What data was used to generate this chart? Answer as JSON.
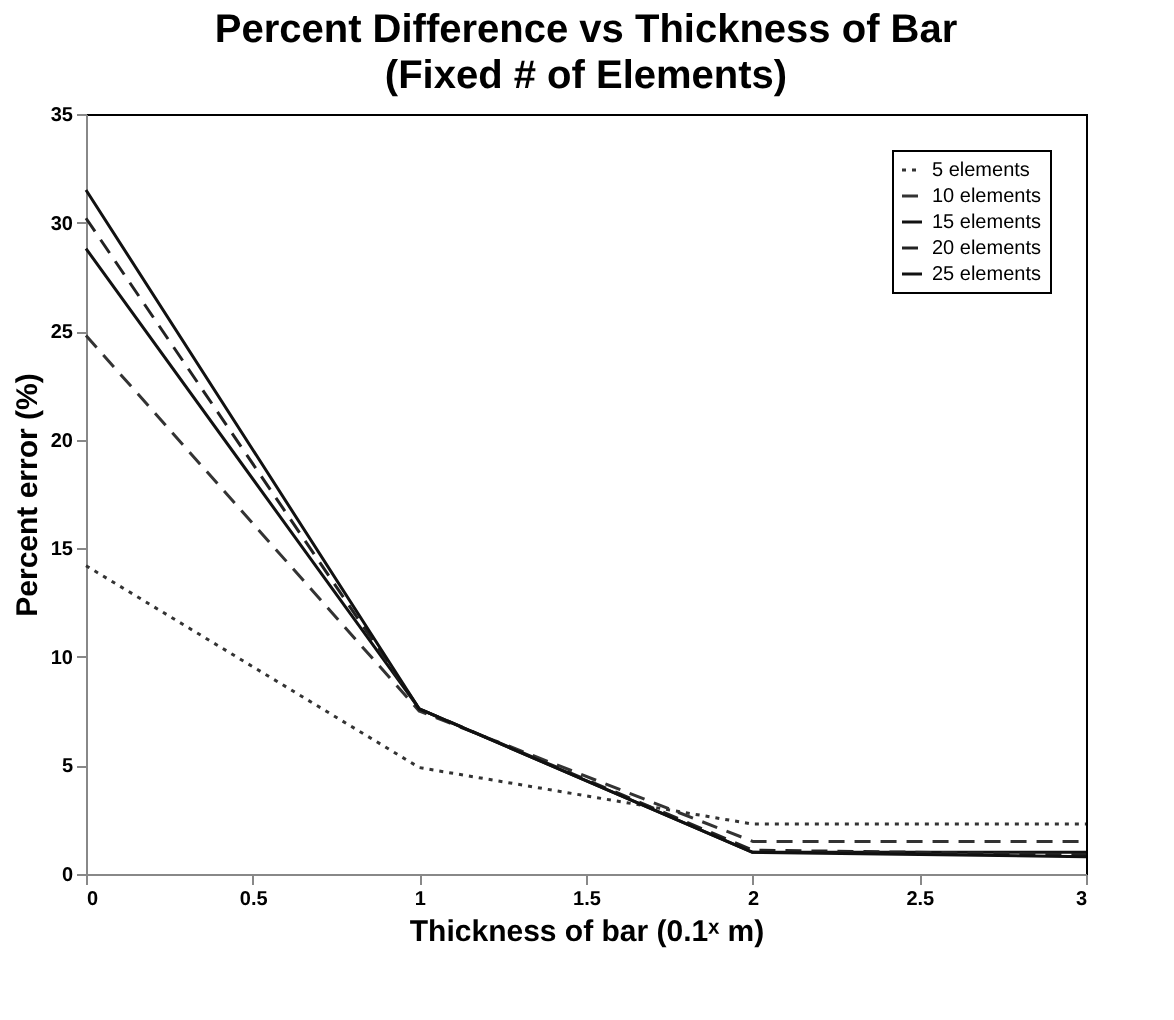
{
  "chart_data": {
    "type": "line",
    "title": "Percent Difference vs Thickness of Bar",
    "subtitle": "(Fixed # of Elements)",
    "xlabel": "Thickness of bar (0.1ˣ m)",
    "ylabel": "Percent error (%)",
    "x": [
      0,
      1,
      2,
      3
    ],
    "series": [
      {
        "name": "5 elements",
        "color": "#333333",
        "line_style": "dotted",
        "values": [
          14.2,
          4.9,
          2.3,
          2.3
        ]
      },
      {
        "name": "10 elements",
        "color": "#333333",
        "line_style": "dashed",
        "values": [
          24.8,
          7.5,
          1.5,
          1.5
        ]
      },
      {
        "name": "15 elements",
        "color": "#111111",
        "line_style": "solid",
        "values": [
          28.8,
          7.6,
          1.0,
          1.0
        ]
      },
      {
        "name": "20 elements",
        "color": "#222222",
        "line_style": "dashed",
        "values": [
          30.2,
          7.6,
          1.1,
          0.9
        ]
      },
      {
        "name": "25 elements",
        "color": "#111111",
        "line_style": "solid",
        "values": [
          31.5,
          7.6,
          1.0,
          0.8
        ]
      }
    ],
    "xlim": [
      0,
      3
    ],
    "xticks": [
      0,
      0.5,
      1,
      1.5,
      2,
      2.5,
      3
    ],
    "ylim": [
      0,
      35
    ],
    "yticks": [
      0,
      5,
      10,
      15,
      20,
      25,
      30,
      35
    ],
    "grid": false,
    "legend": "top right",
    "marker": "none"
  }
}
